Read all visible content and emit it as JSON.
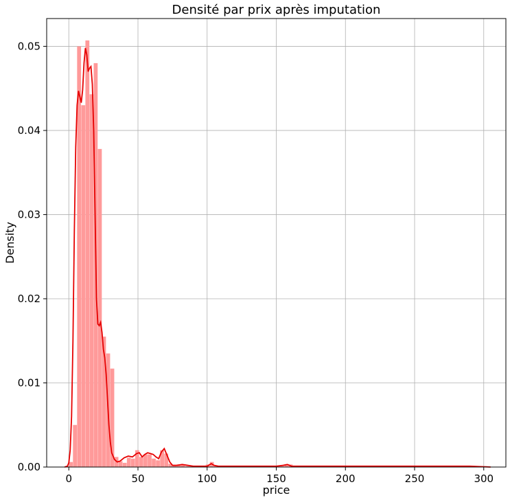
{
  "chart_data": {
    "type": "bar",
    "title": "Densité par prix après imputation",
    "xlabel": "price",
    "ylabel": "Density",
    "xlim": [
      -16,
      316
    ],
    "ylim": [
      0,
      0.0533
    ],
    "grid": true,
    "legend": "none",
    "bar_color": "#ff9a9a",
    "line_color": "#e60000",
    "x_ticks": [
      {
        "value": 0,
        "label": "0"
      },
      {
        "value": 50,
        "label": "50"
      },
      {
        "value": 100,
        "label": "100"
      },
      {
        "value": 150,
        "label": "150"
      },
      {
        "value": 200,
        "label": "200"
      },
      {
        "value": 250,
        "label": "250"
      },
      {
        "value": 300,
        "label": "300"
      }
    ],
    "y_ticks": [
      {
        "value": 0.0,
        "label": "0.00"
      },
      {
        "value": 0.01,
        "label": "0.01"
      },
      {
        "value": 0.02,
        "label": "0.02"
      },
      {
        "value": 0.03,
        "label": "0.03"
      },
      {
        "value": 0.04,
        "label": "0.04"
      },
      {
        "value": 0.05,
        "label": "0.05"
      }
    ],
    "histogram": {
      "bin_width": 3,
      "bin_starts": [
        0,
        3,
        6,
        9,
        12,
        15,
        18,
        21,
        24,
        27,
        30,
        33,
        36,
        39,
        42,
        45,
        48,
        51,
        54,
        57,
        60,
        63,
        66,
        69,
        72,
        75,
        78,
        81,
        84,
        87,
        90,
        93,
        96,
        99,
        102,
        105,
        108,
        111,
        114,
        117,
        120,
        123,
        126,
        129,
        132,
        135,
        138,
        141,
        144,
        147,
        150,
        153,
        156,
        159,
        162,
        165,
        168,
        171,
        174,
        177,
        180,
        183,
        186,
        189,
        192,
        195,
        198,
        201,
        204,
        207,
        210,
        213,
        216,
        219,
        222,
        225,
        228,
        231,
        234,
        237,
        240,
        243,
        246,
        249,
        252,
        255,
        258,
        261,
        264,
        267,
        270,
        273,
        276,
        279,
        282,
        285,
        288,
        291,
        294,
        297,
        300
      ],
      "densities": [
        0.0006,
        0.005,
        0.05,
        0.043,
        0.0507,
        0.0443,
        0.048,
        0.0378,
        0.0155,
        0.0135,
        0.0117,
        0.0012,
        0.0007,
        0.0005,
        0.0011,
        0.001,
        0.002,
        0.0012,
        0.0015,
        0.0015,
        0.001,
        0.0008,
        0.002,
        0.0016,
        0.0004,
        0.0002,
        0.0003,
        0.0003,
        0.0001,
        0.0001,
        0.0001,
        0.0001,
        0.0001,
        0.0003,
        0.0006,
        0.0002,
        0.0001,
        0.0001,
        0.0001,
        0.0001,
        0.0001,
        0.0001,
        0.0001,
        0.0001,
        0.0001,
        0.0001,
        0.0001,
        0.0001,
        0.0001,
        0.0001,
        0.0001,
        0.0001,
        0.0002,
        0.0003,
        0.0001,
        0.0001,
        0.0001,
        0.0001,
        0.0001,
        0.0001,
        0.0001,
        0.0001,
        0.0001,
        0.0001,
        0.0001,
        0.0001,
        0.0001,
        0.0001,
        0.0001,
        0.0001,
        0.0001,
        0.0001,
        0.0001,
        0.0001,
        0.0001,
        0.0001,
        0.0001,
        0.0001,
        0.0001,
        0.0001,
        0.0001,
        0.0001,
        0.0001,
        0.0001,
        0.0001,
        0.0001,
        0.0001,
        0.0001,
        0.0001,
        0.0001,
        0.0001,
        0.0001,
        0.0001,
        0.0001,
        0.0001,
        0.0001,
        0.0001,
        0.0001,
        0.0001,
        0.0001,
        0.0001
      ]
    },
    "kde": {
      "x": [
        -3,
        -1,
        0,
        1,
        2,
        3,
        4,
        5,
        6,
        7,
        8,
        9,
        10,
        11,
        12,
        13,
        14,
        15,
        16,
        17,
        18,
        19,
        20,
        21,
        22,
        23,
        24,
        25,
        26,
        27,
        28,
        29,
        30,
        31,
        33,
        35,
        37,
        40,
        43,
        46,
        49,
        51,
        53,
        55,
        57,
        59,
        61,
        63,
        65,
        67,
        69,
        71,
        73,
        75,
        78,
        82,
        86,
        90,
        95,
        100,
        103,
        105,
        108,
        112,
        120,
        130,
        140,
        150,
        155,
        158,
        161,
        165,
        175,
        190,
        205,
        230,
        260,
        290,
        305
      ],
      "y": [
        0,
        0.0001,
        0.0005,
        0.002,
        0.006,
        0.015,
        0.028,
        0.038,
        0.043,
        0.0447,
        0.044,
        0.0433,
        0.0448,
        0.048,
        0.0498,
        0.049,
        0.047,
        0.0474,
        0.0476,
        0.0455,
        0.04,
        0.03,
        0.02,
        0.017,
        0.0168,
        0.0172,
        0.016,
        0.014,
        0.013,
        0.011,
        0.008,
        0.005,
        0.003,
        0.0017,
        0.0009,
        0.0006,
        0.0007,
        0.0011,
        0.0013,
        0.0012,
        0.0016,
        0.0017,
        0.0012,
        0.0015,
        0.0017,
        0.0016,
        0.0015,
        0.0012,
        0.001,
        0.0018,
        0.0022,
        0.0014,
        0.0006,
        0.0002,
        0.0002,
        0.0003,
        0.0002,
        0.0001,
        0.0001,
        0.0001,
        0.0004,
        0.0002,
        0.0001,
        0.0001,
        0.0001,
        0.0001,
        0.0001,
        0.0001,
        0.0002,
        0.0003,
        0.0001,
        0.0001,
        0.0001,
        0.0001,
        0.0001,
        0.0001,
        0.0001,
        0.0001,
        0.0
      ]
    }
  }
}
